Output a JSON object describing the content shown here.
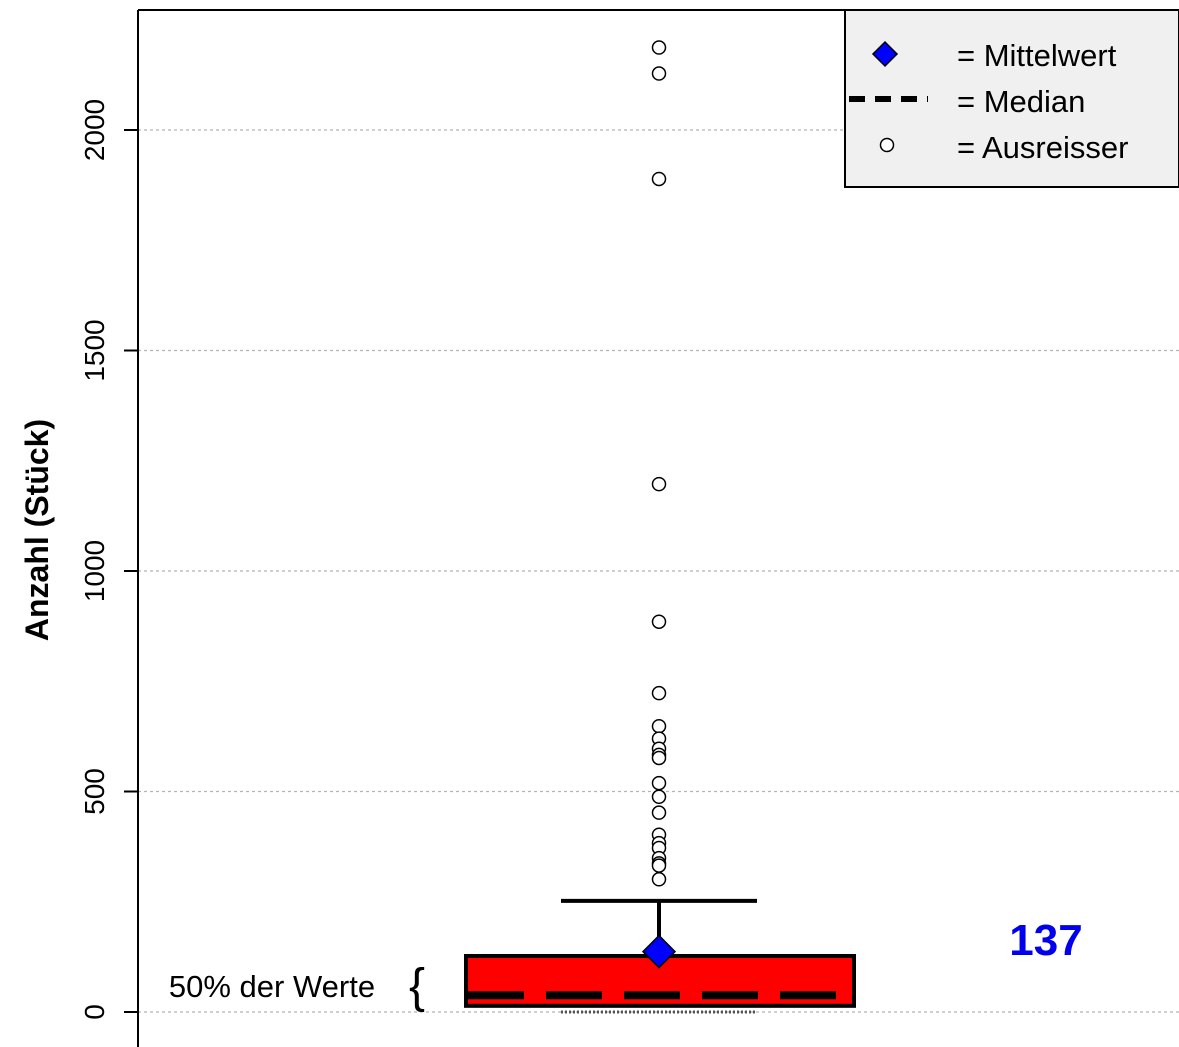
{
  "chart_data": {
    "type": "boxplot",
    "ylabel": "Anzahl (Stück)",
    "ylim": [
      -50,
      2270
    ],
    "yticks": [
      0,
      500,
      1000,
      1500,
      2000
    ],
    "ytick_labels": [
      "0",
      "500",
      "1000",
      "1500",
      "2000"
    ],
    "grid": true,
    "box": {
      "q1": 14,
      "median": 38,
      "q3": 127,
      "whisker_low": 0,
      "whisker_high": 252,
      "mean": 137,
      "fill_color": "#ff0000"
    },
    "outliers": [
      2187,
      2128,
      1889,
      1197,
      885,
      723,
      648,
      620,
      597,
      583,
      576,
      519,
      488,
      452,
      402,
      383,
      372,
      349,
      337,
      332,
      301
    ],
    "mean_label": "137",
    "mean_label_color": "#0000ee",
    "bracket_label": "50% der Werte",
    "bracket_glyph": "{",
    "legend": {
      "position": "top-right",
      "items": [
        {
          "symbol": "diamond",
          "label": "= Mittelwert"
        },
        {
          "symbol": "dashed-line",
          "label": "= Median"
        },
        {
          "symbol": "circle",
          "label": "= Ausreisser"
        }
      ]
    },
    "colors": {
      "box": "#ff0000",
      "mean_marker": "#0000ff",
      "legend_bg": "#f0f0f0",
      "grid": "#b4b4b4"
    }
  }
}
